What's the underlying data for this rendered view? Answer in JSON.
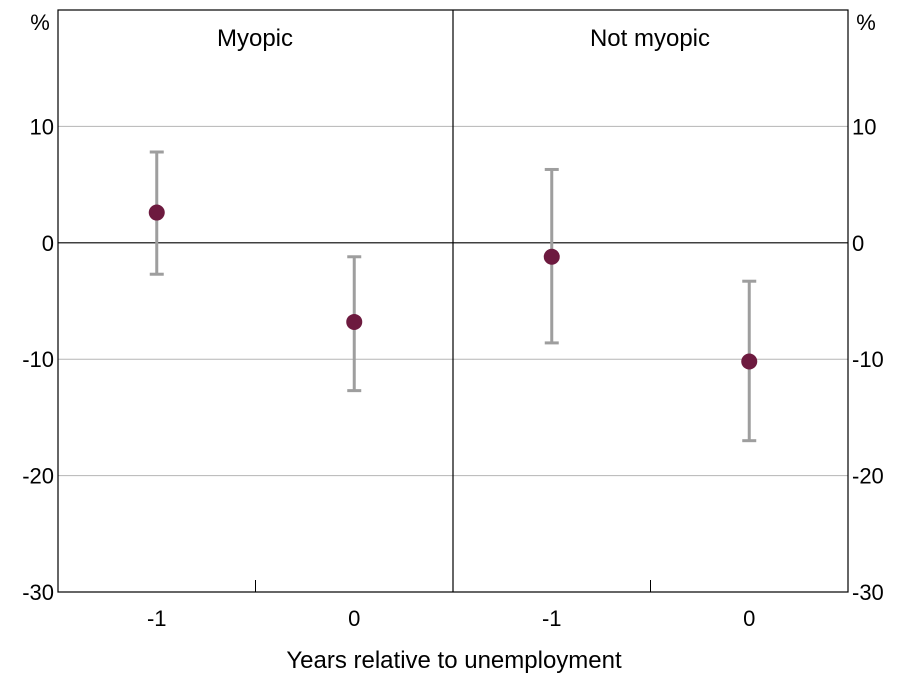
{
  "chart_data": {
    "type": "scatter",
    "error_bars": true,
    "xlabel": "Years relative to unemployment",
    "y_unit_left": "%",
    "y_unit_right": "%",
    "ylim": [
      -30,
      20
    ],
    "yticks": [
      -30,
      -20,
      -10,
      0,
      10
    ],
    "x_tick_labels": [
      "-1",
      "0"
    ],
    "grid": true,
    "colors": {
      "point": "#6d1a3f",
      "error_bar": "#9e9e9e",
      "grid": "#b5b5b5",
      "axis": "#000000"
    },
    "panels": [
      {
        "title": "Myopic",
        "points": [
          {
            "x": "-1",
            "y": 2.6,
            "low": -2.7,
            "high": 7.8
          },
          {
            "x": "0",
            "y": -6.8,
            "low": -12.7,
            "high": -1.2
          }
        ]
      },
      {
        "title": "Not myopic",
        "points": [
          {
            "x": "-1",
            "y": -1.2,
            "low": -8.6,
            "high": 6.3
          },
          {
            "x": "0",
            "y": -10.2,
            "low": -17.0,
            "high": -3.3
          }
        ]
      }
    ]
  }
}
